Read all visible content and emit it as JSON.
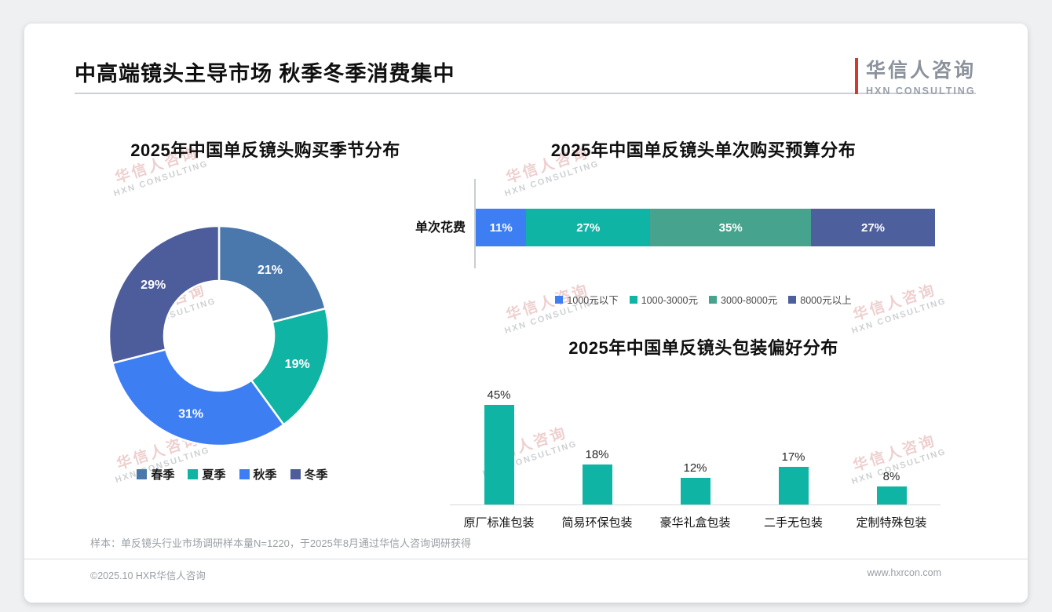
{
  "header": {
    "title": "中高端镜头主导市场 秋季冬季消费集中",
    "logo_cn": "华信人咨询",
    "logo_en": "HXN CONSULTING"
  },
  "watermark": {
    "cn": "华信人咨询",
    "en": "HXN CONSULTING"
  },
  "footer": {
    "note": "样本：单反镜头行业市场调研样本量N=1220，于2025年8月通过华信人咨询调研获得",
    "left": "©2025.10 HXR华信人咨询",
    "right": "www.hxrcon.com"
  },
  "chart_data": [
    {
      "id": "season",
      "type": "pie",
      "subtype": "donut",
      "title": "2025年中国单反镜头购买季节分布",
      "categories": [
        "春季",
        "夏季",
        "秋季",
        "冬季"
      ],
      "values": [
        21,
        19,
        31,
        29
      ],
      "unit": "%",
      "colors": [
        "#4a78ad",
        "#10b4a4",
        "#3d7ef2",
        "#4d5d9c"
      ],
      "legend_position": "bottom"
    },
    {
      "id": "budget",
      "type": "bar",
      "subtype": "horizontal-stacked",
      "title": "2025年中国单反镜头单次购买预算分布",
      "row_label": "单次花费",
      "categories": [
        "1000元以下",
        "1000-3000元",
        "3000-8000元",
        "8000元以上"
      ],
      "values": [
        11,
        27,
        35,
        27
      ],
      "unit": "%",
      "colors": [
        "#3d7ef2",
        "#10b4a4",
        "#46a38e",
        "#4d5f9c"
      ],
      "legend_position": "bottom",
      "xlim": [
        0,
        100
      ]
    },
    {
      "id": "packaging",
      "type": "bar",
      "subtype": "vertical",
      "title": "2025年中国单反镜头包装偏好分布",
      "categories": [
        "原厂标准包装",
        "简易环保包装",
        "豪华礼盒包装",
        "二手无包装",
        "定制特殊包装"
      ],
      "values": [
        45,
        18,
        12,
        17,
        8
      ],
      "unit": "%",
      "color": "#10b4a4",
      "ylim": [
        0,
        50
      ],
      "grid": false
    }
  ]
}
